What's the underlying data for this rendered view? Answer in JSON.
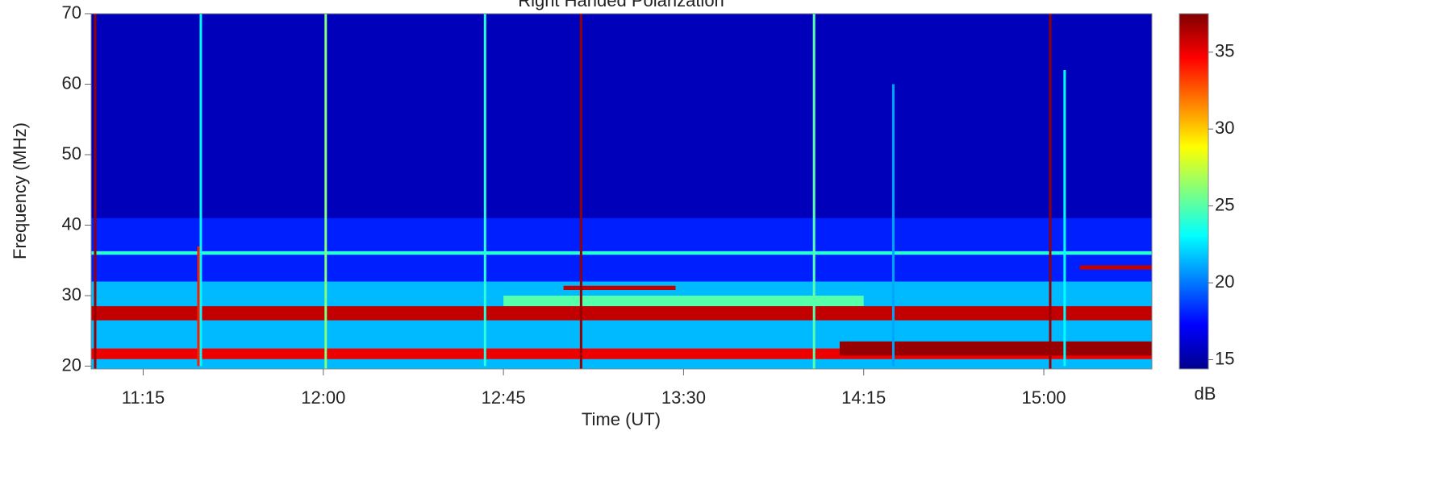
{
  "chart_data": {
    "type": "spectrogram",
    "title": "Right Handed Polarization",
    "x_label": "Time (UT)",
    "y_label": "Frequency (MHz)",
    "colorbar_label": "dB",
    "xlim": [
      662,
      927
    ],
    "ylim": [
      19.6,
      70
    ],
    "clim": [
      14.4,
      37.5
    ],
    "xticks": [
      {
        "value": 675,
        "label": "11:15"
      },
      {
        "value": 720,
        "label": "12:00"
      },
      {
        "value": 765,
        "label": "12:45"
      },
      {
        "value": 810,
        "label": "13:30"
      },
      {
        "value": 855,
        "label": "14:15"
      },
      {
        "value": 900,
        "label": "15:00"
      }
    ],
    "yticks": [
      20,
      30,
      40,
      50,
      60,
      70
    ],
    "cticks": [
      15,
      20,
      25,
      30,
      35
    ],
    "regions": [
      {
        "t": [
          662,
          927
        ],
        "f": [
          19.6,
          70
        ],
        "value": 15.5
      },
      {
        "t": [
          662,
          927
        ],
        "f": [
          30,
          41
        ],
        "value": 18
      },
      {
        "t": [
          662,
          927
        ],
        "f": [
          19.6,
          32
        ],
        "value": 21.5
      },
      {
        "t": [
          765,
          855
        ],
        "f": [
          28.5,
          30
        ],
        "value": 25
      },
      {
        "t": [
          662,
          927
        ],
        "f": [
          35.8,
          36.3
        ],
        "value": 24
      },
      {
        "t": [
          662,
          927
        ],
        "f": [
          26.5,
          28.5
        ],
        "value": 36
      },
      {
        "t": [
          662,
          927
        ],
        "f": [
          21,
          22.5
        ],
        "value": 35
      },
      {
        "t": [
          849,
          927
        ],
        "f": [
          21.5,
          23.5
        ],
        "value": 37
      },
      {
        "t": [
          780,
          808
        ],
        "f": [
          30.8,
          31.4
        ],
        "value": 36
      },
      {
        "t": [
          909,
          927
        ],
        "f": [
          33.7,
          34.3
        ],
        "value": 36
      }
    ],
    "bursts": [
      {
        "t": 663,
        "f": [
          19.6,
          70
        ],
        "value": 37
      },
      {
        "t": 689.4,
        "f": [
          20,
          70
        ],
        "value": 23
      },
      {
        "t": 688.8,
        "f": [
          20,
          37
        ],
        "value": 34
      },
      {
        "t": 720.6,
        "f": [
          19.6,
          70
        ],
        "value": 26
      },
      {
        "t": 760.4,
        "f": [
          20,
          70
        ],
        "value": 24
      },
      {
        "t": 784.4,
        "f": [
          19.6,
          70
        ],
        "value": 37
      },
      {
        "t": 842.6,
        "f": [
          19.6,
          70
        ],
        "value": 25
      },
      {
        "t": 862.4,
        "f": [
          20,
          60
        ],
        "value": 21
      },
      {
        "t": 901.6,
        "f": [
          19.6,
          70
        ],
        "value": 37
      },
      {
        "t": 905.2,
        "f": [
          20,
          62
        ],
        "value": 23
      }
    ]
  }
}
